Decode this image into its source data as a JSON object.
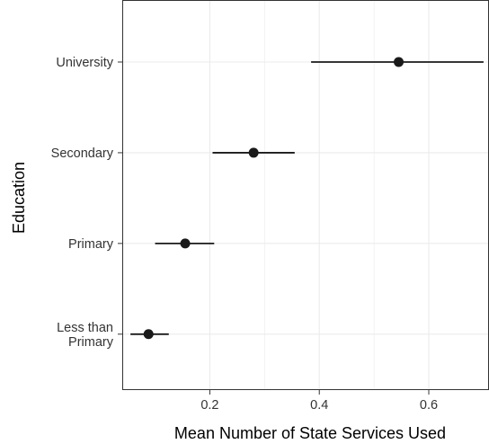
{
  "chart_data": {
    "type": "dot-errorbar",
    "title": "",
    "xlabel": "Mean Number of State Services Used",
    "ylabel": "Education",
    "xlim": [
      0.04,
      0.71
    ],
    "xticks": [
      0.2,
      0.4,
      0.6
    ],
    "xtick_labels": [
      "0.2",
      "0.4",
      "0.6"
    ],
    "grid": true,
    "categories": [
      {
        "label": [
          "University"
        ],
        "mean": 0.545,
        "lower": 0.385,
        "upper": 0.7
      },
      {
        "label": [
          "Secondary"
        ],
        "mean": 0.28,
        "lower": 0.205,
        "upper": 0.355
      },
      {
        "label": [
          "Primary"
        ],
        "mean": 0.155,
        "lower": 0.1,
        "upper": 0.208
      },
      {
        "label": [
          "Less than",
          "Primary"
        ],
        "mean": 0.088,
        "lower": 0.055,
        "upper": 0.125
      }
    ],
    "colors": {
      "point": "#1a1a1a",
      "errorbar": "#1a1a1a",
      "grid": "#ebebeb",
      "panel_border": "#333333",
      "background": "#ffffff"
    }
  }
}
